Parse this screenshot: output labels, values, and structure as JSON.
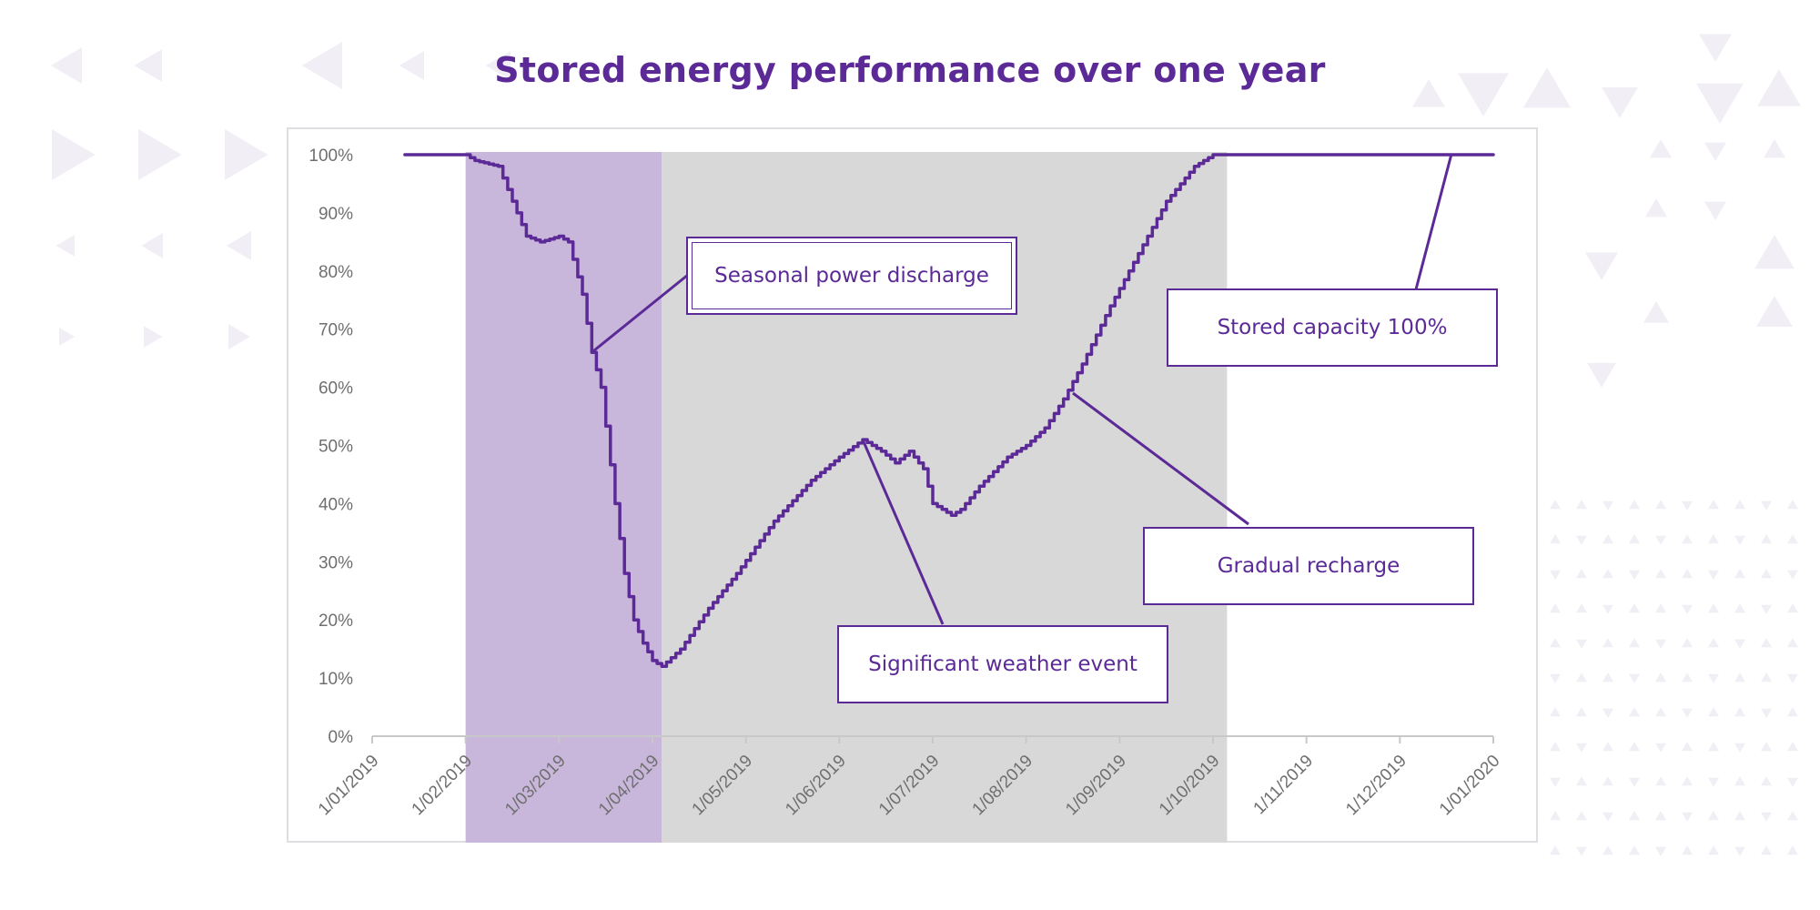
{
  "colors": {
    "accent": "#5b2a96",
    "shade_discharge": "#c9b7db",
    "shade_recharge": "#d8d8d8",
    "axis": "#c8c8c8",
    "tick_text": "#6f6f6f",
    "pattern": "#ebe8f1"
  },
  "chart_data": {
    "type": "line",
    "title": "Stored energy performance over one year",
    "xlabel": "",
    "ylabel": "",
    "ylim": [
      0,
      100
    ],
    "y_ticks": [
      "0%",
      "10%",
      "20%",
      "30%",
      "40%",
      "50%",
      "60%",
      "70%",
      "80%",
      "90%",
      "100%"
    ],
    "x_ticks": [
      "1/01/2019",
      "1/02/2019",
      "1/03/2019",
      "1/04/2019",
      "1/05/2019",
      "1/06/2019",
      "1/07/2019",
      "1/08/2019",
      "1/09/2019",
      "1/10/2019",
      "1/11/2019",
      "1/12/2019",
      "1/01/2020"
    ],
    "xlim_months": [
      0,
      12
    ],
    "shaded_regions": [
      {
        "name": "discharge",
        "from_month": 1.0,
        "to_month": 3.1
      },
      {
        "name": "recharge",
        "from_month": 3.1,
        "to_month": 9.15
      }
    ],
    "series": [
      {
        "name": "Stored capacity",
        "x_months": [
          0.35,
          1.0,
          1.1,
          1.35,
          1.5,
          1.65,
          1.8,
          2.0,
          2.1,
          2.15,
          2.25,
          2.35,
          2.45,
          2.6,
          2.7,
          2.8,
          2.9,
          3.0,
          3.1,
          3.3,
          3.6,
          3.9,
          4.3,
          4.7,
          5.0,
          5.25,
          5.45,
          5.6,
          5.75,
          5.9,
          6.0,
          6.2,
          6.3,
          6.5,
          6.8,
          7.0,
          7.2,
          7.4,
          7.6,
          7.9,
          8.2,
          8.5,
          8.8,
          9.0,
          9.2,
          9.5,
          10.0,
          10.5,
          11.0,
          11.5,
          12.0
        ],
        "values": [
          100,
          100,
          99,
          98,
          92,
          86,
          85,
          86,
          85,
          82,
          76,
          66,
          60,
          40,
          28,
          20,
          16,
          13,
          12,
          15,
          22,
          28,
          37,
          44,
          48,
          51,
          49,
          47,
          49,
          46,
          40,
          38,
          39,
          43,
          48,
          50,
          53,
          58,
          64,
          74,
          83,
          92,
          98,
          100,
          100,
          100,
          100,
          100,
          100,
          100,
          100
        ]
      }
    ],
    "annotations": [
      {
        "id": "discharge",
        "text": "Seasonal power discharge",
        "target_month": 2.35,
        "target_value": 66
      },
      {
        "id": "capacity",
        "text": "Stored capacity 100%",
        "target_month": 11.55,
        "target_value": 100
      },
      {
        "id": "recharge",
        "text": "Gradual recharge",
        "target_month": 7.5,
        "target_value": 59
      },
      {
        "id": "weather",
        "text": "Significant weather event",
        "target_month": 5.25,
        "target_value": 51
      }
    ]
  }
}
